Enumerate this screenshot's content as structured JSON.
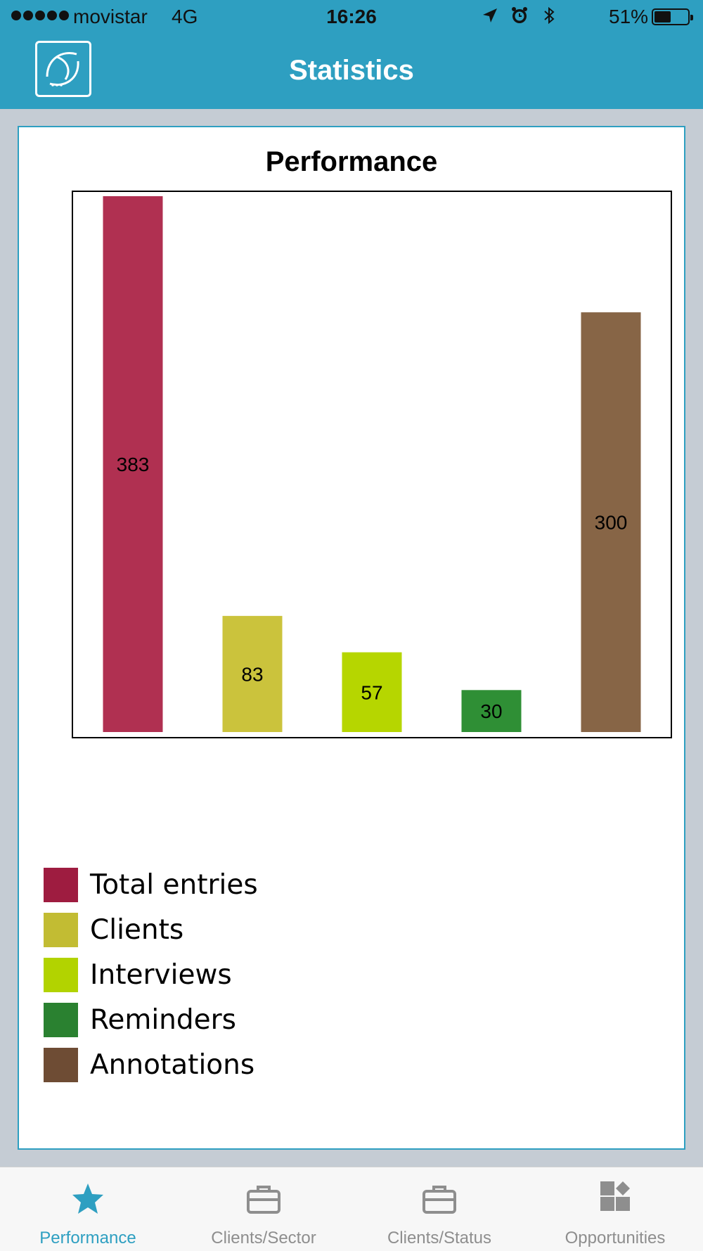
{
  "status_bar": {
    "carrier": "movistar",
    "network": "4G",
    "time": "16:26",
    "battery_percent": "51%",
    "battery_level": 0.51
  },
  "nav": {
    "title": "Statistics"
  },
  "colors": {
    "nav_background": "#2e9fc1",
    "accent": "#2e9fc1",
    "tab_inactive": "#8e8e8e"
  },
  "chart_data": {
    "type": "bar",
    "title": "Performance",
    "categories": [
      "Total entries",
      "Clients",
      "Interviews",
      "Reminders",
      "Annotations"
    ],
    "values": [
      383,
      83,
      57,
      30,
      300
    ],
    "colors": [
      "#b03051",
      "#cbc33c",
      "#b6d600",
      "#2f8f35",
      "#876546"
    ],
    "data_labels": [
      "383",
      "83",
      "57",
      "30",
      "300"
    ],
    "ylim": [
      0,
      383
    ],
    "grid": false,
    "legend_position": "bottom-left"
  },
  "legend": {
    "items": [
      {
        "label": "Total entries",
        "color": "#9e1c40"
      },
      {
        "label": "Clients",
        "color": "#c2bc33"
      },
      {
        "label": "Interviews",
        "color": "#b2d300"
      },
      {
        "label": "Reminders",
        "color": "#2a8130"
      },
      {
        "label": "Annotations",
        "color": "#6e4c34"
      }
    ]
  },
  "tabs": [
    {
      "label": "Performance",
      "icon": "star-icon",
      "active": true
    },
    {
      "label": "Clients/Sector",
      "icon": "briefcase-icon",
      "active": false
    },
    {
      "label": "Clients/Status",
      "icon": "briefcase-icon",
      "active": false
    },
    {
      "label": "Opportunities",
      "icon": "widgets-icon",
      "active": false
    }
  ]
}
